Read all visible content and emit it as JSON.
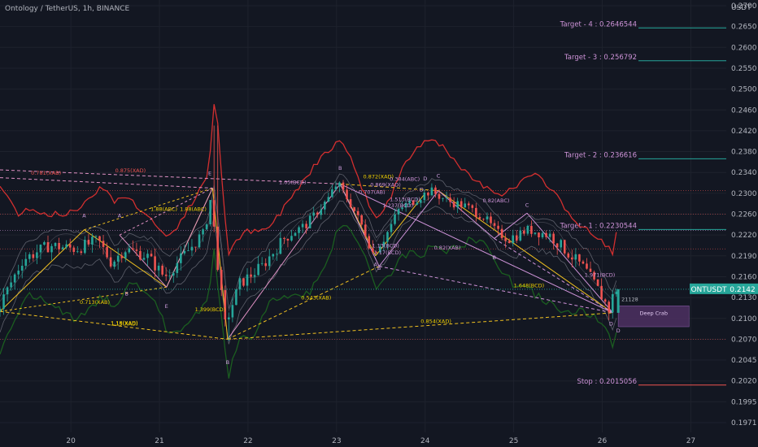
{
  "header": {
    "title": "Ontology / TetherUS, 1h, BINANCE"
  },
  "axis": {
    "currency": "USDT"
  },
  "chart_data": {
    "type": "candlestick",
    "symbol": "ONTUSDT",
    "last_price": "0.2142",
    "ylim": [
      0.196,
      0.272
    ],
    "xlim": [
      19.2,
      27.4
    ],
    "yticks": [
      "0.2700",
      "0.2650",
      "0.2600",
      "0.2550",
      "0.2500",
      "0.2460",
      "0.2420",
      "0.2380",
      "0.2340",
      "0.2300",
      "0.2260",
      "0.2220",
      "0.2190",
      "0.2160",
      "0.2130",
      "0.2100",
      "0.2070",
      "0.2045",
      "0.2020",
      "0.1995",
      "0.1971"
    ],
    "yticks_values": [
      0.27,
      0.265,
      0.26,
      0.255,
      0.25,
      0.246,
      0.242,
      0.238,
      0.234,
      0.23,
      0.226,
      0.222,
      0.219,
      0.216,
      0.213,
      0.21,
      0.207,
      0.2045,
      0.202,
      0.1995,
      0.1971
    ],
    "xticks": [
      "20",
      "21",
      "22",
      "23",
      "24",
      "25",
      "26",
      "27"
    ],
    "xticks_values": [
      20,
      21,
      22,
      23,
      24,
      25,
      26,
      27
    ],
    "targets": [
      {
        "label": "Target - 4 : 0.2646544",
        "value": 0.2646544
      },
      {
        "label": "Target - 3 : 0.256792",
        "value": 0.256792
      },
      {
        "label": "Target - 2 : 0.236616",
        "value": 0.236616
      },
      {
        "label": "Target - 1 : 0.2230544",
        "value": 0.2230544
      },
      {
        "label": "Stop : 0.2015056",
        "value": 0.2015056
      }
    ],
    "deep_crab": {
      "label": "Deep Crab",
      "x0": 26.18,
      "x1": 26.98,
      "y0": 0.2118,
      "y1": 0.2088
    },
    "current_marker": "21128",
    "pattern_points": [
      {
        "label": "A",
        "x": 20.15,
        "y": 0.2254
      },
      {
        "label": "A",
        "x": 20.55,
        "y": 0.2254
      },
      {
        "label": "B",
        "x": 20.63,
        "y": 0.2133
      },
      {
        "label": "E",
        "x": 21.57,
        "y": 0.2335
      },
      {
        "label": "E",
        "x": 21.08,
        "y": 0.2115
      },
      {
        "label": "B",
        "x": 21.77,
        "y": 0.204
      },
      {
        "label": "B",
        "x": 23.04,
        "y": 0.2345
      },
      {
        "label": "A",
        "x": 23.44,
        "y": 0.2175
      },
      {
        "label": "B",
        "x": 23.48,
        "y": 0.217
      },
      {
        "label": "D",
        "x": 23.96,
        "y": 0.2304
      },
      {
        "label": "D",
        "x": 24.0,
        "y": 0.2325
      },
      {
        "label": "C",
        "x": 24.15,
        "y": 0.233
      },
      {
        "label": "C",
        "x": 25.15,
        "y": 0.2274
      },
      {
        "label": "B",
        "x": 24.78,
        "y": 0.2185
      },
      {
        "label": "D",
        "x": 26.1,
        "y": 0.209
      },
      {
        "label": "D",
        "x": 26.18,
        "y": 0.208
      }
    ],
    "ratio_labels": [
      {
        "text": "0.781(XAB)",
        "x": 19.55,
        "y": 0.2336,
        "color": "#ef5350"
      },
      {
        "text": "0.875(XAD)",
        "x": 20.5,
        "y": 0.234,
        "color": "#ef5350"
      },
      {
        "text": "1.05(BCD)",
        "x": 22.35,
        "y": 0.2318,
        "color": "#ce93d8"
      },
      {
        "text": "1.88(ABC)",
        "x": 20.9,
        "y": 0.2266,
        "color": "#f0d000"
      },
      {
        "text": "1.88(ABC)",
        "x": 21.23,
        "y": 0.2266,
        "color": "#f0d000"
      },
      {
        "text": "0.713(XAB)",
        "x": 20.1,
        "y": 0.2121,
        "color": "#f0d000"
      },
      {
        "text": "1.399(BCD)",
        "x": 21.4,
        "y": 0.211,
        "color": "#f0d000"
      },
      {
        "text": "1.15(XAD)",
        "x": 20.45,
        "y": 0.209,
        "color": "#f0d000"
      },
      {
        "text": "1.18(XAD)",
        "x": 20.45,
        "y": 0.2091,
        "color": "#f0d000"
      },
      {
        "text": "0.543(XAB)",
        "x": 22.6,
        "y": 0.2127,
        "color": "#f0d000"
      },
      {
        "text": "0.854(XAD)",
        "x": 23.95,
        "y": 0.2093,
        "color": "#f0d000"
      },
      {
        "text": "0.872(XAD)",
        "x": 23.3,
        "y": 0.2329,
        "color": "#f0d000"
      },
      {
        "text": "0.869(XAD)",
        "x": 23.38,
        "y": 0.2313,
        "color": "#ce93d8"
      },
      {
        "text": "0.707(AB)",
        "x": 23.25,
        "y": 0.2299,
        "color": "#ce93d8"
      },
      {
        "text": "0.384(ABC)",
        "x": 23.6,
        "y": 0.2324,
        "color": "#ce93d8"
      },
      {
        "text": "1.513(BCD)",
        "x": 23.6,
        "y": 0.2285,
        "color": "#ce93d8"
      },
      {
        "text": "1.237(BCD)",
        "x": 23.52,
        "y": 0.2273,
        "color": "#ce93d8"
      },
      {
        "text": "0.82(ABC)",
        "x": 24.65,
        "y": 0.2283,
        "color": "#ce93d8"
      },
      {
        "text": "0.82(XAB)",
        "x": 24.1,
        "y": 0.2199,
        "color": "#ce93d8"
      },
      {
        "text": "1.13(BCD)",
        "x": 23.4,
        "y": 0.2202,
        "color": "#ce93d8"
      },
      {
        "text": "1.17(BCD)",
        "x": 23.42,
        "y": 0.2192,
        "color": "#ce93d8"
      },
      {
        "text": "1.648(BCD)",
        "x": 25.0,
        "y": 0.2145,
        "color": "#f0d000"
      },
      {
        "text": "1.971(BCD)",
        "x": 25.8,
        "y": 0.216,
        "color": "#ce93d8"
      }
    ]
  }
}
